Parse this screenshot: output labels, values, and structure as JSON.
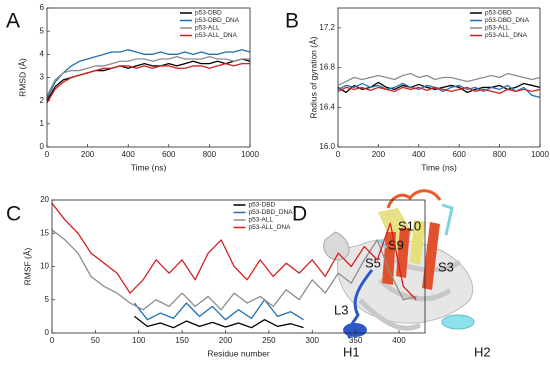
{
  "chart_data": [
    {
      "type": "line",
      "panel": "A",
      "x_label": "Time (ns)",
      "y_label": "RMSD (Å)",
      "legend": "upper right",
      "xlim": [
        0,
        1000
      ],
      "xticks": [
        0,
        200,
        400,
        600,
        800,
        1000
      ],
      "ylim": [
        0,
        6
      ],
      "yticks": [
        0,
        1,
        2,
        3,
        4,
        5,
        6
      ],
      "x": [
        0,
        40,
        80,
        120,
        160,
        200,
        240,
        280,
        320,
        360,
        400,
        440,
        480,
        520,
        560,
        600,
        640,
        680,
        720,
        760,
        800,
        840,
        880,
        920,
        960,
        1000
      ],
      "series": [
        {
          "name": "p53-DBD",
          "color": "#000000",
          "values": [
            2.0,
            2.6,
            2.9,
            3.0,
            3.1,
            3.2,
            3.3,
            3.3,
            3.4,
            3.5,
            3.4,
            3.5,
            3.6,
            3.5,
            3.5,
            3.6,
            3.5,
            3.6,
            3.7,
            3.6,
            3.6,
            3.7,
            3.6,
            3.7,
            3.8,
            3.7
          ]
        },
        {
          "name": "p53-DBD_DNA",
          "color": "#1f6fb4",
          "values": [
            2.1,
            2.8,
            3.2,
            3.5,
            3.7,
            3.8,
            3.9,
            4.0,
            4.1,
            4.1,
            4.2,
            4.1,
            4.0,
            4.0,
            4.1,
            4.0,
            4.0,
            4.1,
            4.0,
            4.1,
            4.0,
            4.0,
            4.1,
            4.1,
            4.2,
            4.1
          ]
        },
        {
          "name": "p53-ALL",
          "color": "#8c8c8c",
          "values": [
            2.2,
            2.9,
            3.2,
            3.3,
            3.3,
            3.4,
            3.5,
            3.5,
            3.6,
            3.7,
            3.7,
            3.8,
            3.8,
            3.7,
            3.8,
            3.8,
            3.9,
            3.8,
            3.8,
            3.8,
            3.9,
            3.8,
            3.8,
            3.7,
            3.8,
            3.8
          ]
        },
        {
          "name": "p53-ALL_DNA",
          "color": "#d62020",
          "values": [
            1.9,
            2.5,
            2.8,
            3.0,
            3.1,
            3.2,
            3.3,
            3.4,
            3.4,
            3.5,
            3.5,
            3.4,
            3.5,
            3.4,
            3.5,
            3.5,
            3.4,
            3.4,
            3.5,
            3.5,
            3.4,
            3.5,
            3.6,
            3.5,
            3.6,
            3.6
          ]
        }
      ]
    },
    {
      "type": "line",
      "panel": "B",
      "x_label": "Time (ns)",
      "y_label": "Radius of gyration (Å)",
      "legend": "upper right",
      "xlim": [
        0,
        1000
      ],
      "xticks": [
        0,
        200,
        400,
        600,
        800,
        1000
      ],
      "ylim": [
        16.0,
        17.4
      ],
      "yticks": [
        {
          "value": 16,
          "label": "16.0"
        },
        16.4,
        16.8,
        17.2
      ],
      "x": [
        0,
        40,
        80,
        120,
        160,
        200,
        240,
        280,
        320,
        360,
        400,
        440,
        480,
        520,
        560,
        600,
        640,
        680,
        720,
        760,
        800,
        840,
        880,
        920,
        960,
        1000
      ],
      "series": [
        {
          "name": "p53-DBD",
          "color": "#000000",
          "values": [
            16.6,
            16.55,
            16.62,
            16.58,
            16.6,
            16.65,
            16.6,
            16.58,
            16.62,
            16.6,
            16.63,
            16.6,
            16.58,
            16.6,
            16.62,
            16.6,
            16.55,
            16.58,
            16.6,
            16.6,
            16.62,
            16.58,
            16.6,
            16.64,
            16.62,
            16.6
          ]
        },
        {
          "name": "p53-DBD_DNA",
          "color": "#1f6fb4",
          "values": [
            16.58,
            16.62,
            16.6,
            16.64,
            16.6,
            16.62,
            16.58,
            16.6,
            16.64,
            16.6,
            16.58,
            16.62,
            16.6,
            16.56,
            16.6,
            16.62,
            16.58,
            16.6,
            16.56,
            16.6,
            16.58,
            16.62,
            16.56,
            16.6,
            16.52,
            16.5
          ]
        },
        {
          "name": "p53-ALL",
          "color": "#8c8c8c",
          "values": [
            16.62,
            16.66,
            16.7,
            16.68,
            16.7,
            16.72,
            16.7,
            16.68,
            16.72,
            16.74,
            16.7,
            16.72,
            16.68,
            16.7,
            16.7,
            16.68,
            16.66,
            16.68,
            16.7,
            16.72,
            16.7,
            16.74,
            16.72,
            16.7,
            16.68,
            16.7
          ]
        },
        {
          "name": "p53-ALL_DNA",
          "color": "#d62020",
          "values": [
            16.56,
            16.6,
            16.58,
            16.6,
            16.57,
            16.6,
            16.58,
            16.56,
            16.6,
            16.58,
            16.6,
            16.57,
            16.6,
            16.58,
            16.56,
            16.58,
            16.6,
            16.56,
            16.58,
            16.56,
            16.54,
            16.58,
            16.56,
            16.58,
            16.56,
            16.58
          ]
        }
      ]
    },
    {
      "type": "line",
      "panel": "C",
      "x_label": "Residue number",
      "y_label": "RMSF (Å)",
      "legend": "upper center",
      "xlim": [
        0,
        430
      ],
      "xticks": [
        0,
        50,
        100,
        150,
        200,
        250,
        300,
        350,
        400
      ],
      "ylim": [
        0,
        20
      ],
      "yticks": [
        0,
        5,
        10,
        15,
        20
      ],
      "series": [
        {
          "name": "p53-DBD",
          "color": "#000000",
          "x": [
            95,
            110,
            125,
            140,
            155,
            170,
            185,
            200,
            215,
            230,
            245,
            260,
            275,
            290
          ],
          "values": [
            2.5,
            1.0,
            1.5,
            0.8,
            1.8,
            1.0,
            1.6,
            0.9,
            1.5,
            0.8,
            2.0,
            1.0,
            1.4,
            0.8
          ]
        },
        {
          "name": "p53-DBD_DNA",
          "color": "#1f6fb4",
          "x": [
            95,
            110,
            125,
            140,
            155,
            170,
            185,
            200,
            215,
            230,
            245,
            260,
            275,
            290
          ],
          "values": [
            4.5,
            2.0,
            3.0,
            2.2,
            4.5,
            2.5,
            4.0,
            2.0,
            3.5,
            2.2,
            5.0,
            2.5,
            3.2,
            2.0
          ]
        },
        {
          "name": "p53-ALL",
          "color": "#8c8c8c",
          "x": [
            0,
            15,
            30,
            45,
            60,
            75,
            90,
            105,
            120,
            135,
            150,
            165,
            180,
            195,
            210,
            225,
            240,
            255,
            270,
            285,
            300,
            315,
            330,
            345,
            360,
            375,
            390,
            405,
            420
          ],
          "values": [
            15.5,
            14.0,
            12.0,
            8.5,
            7.0,
            6.0,
            4.5,
            3.5,
            5.0,
            4.0,
            6.0,
            4.0,
            5.5,
            3.5,
            6.0,
            4.5,
            5.5,
            4.0,
            6.5,
            5.0,
            8.0,
            6.0,
            9.0,
            7.5,
            11.0,
            14.0,
            9.0,
            5.0,
            5.5
          ]
        },
        {
          "name": "p53-ALL_DNA",
          "color": "#d62020",
          "x": [
            0,
            15,
            30,
            45,
            60,
            75,
            90,
            105,
            120,
            135,
            150,
            165,
            180,
            195,
            210,
            225,
            240,
            255,
            270,
            285,
            300,
            315,
            330,
            345,
            360,
            375,
            390,
            405,
            420
          ],
          "values": [
            19.5,
            17.0,
            15.0,
            12.0,
            10.5,
            9.0,
            6.0,
            8.0,
            11.0,
            9.0,
            11.0,
            8.0,
            12.0,
            14.0,
            10.0,
            8.0,
            11.0,
            8.5,
            10.5,
            9.0,
            11.0,
            8.5,
            12.0,
            10.0,
            13.0,
            11.0,
            16.5,
            7.0,
            5.0
          ]
        }
      ]
    }
  ],
  "structure": {
    "panel": "D",
    "labels": [
      "S10",
      "S9",
      "S5",
      "S3",
      "L3",
      "H1",
      "H2"
    ]
  }
}
